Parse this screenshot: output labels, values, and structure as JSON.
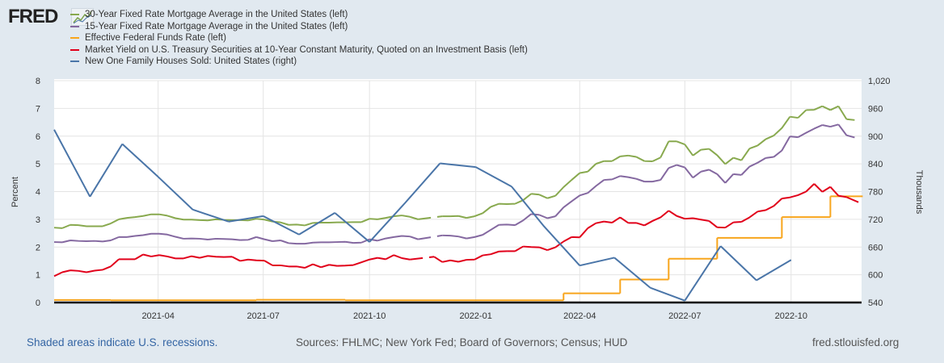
{
  "header": {
    "logo_text": "FRED"
  },
  "chart_data": {
    "type": "line",
    "legend": [
      {
        "label": "30-Year Fixed Rate Mortgage Average in the United States (left)",
        "color": "#88a94e"
      },
      {
        "label": "15-Year Fixed Rate Mortgage Average in the United States (left)",
        "color": "#8468a0"
      },
      {
        "label": "Effective Federal Funds Rate (left)",
        "color": "#f8a51c"
      },
      {
        "label": "Market Yield on U.S. Treasury Securities at 10-Year Constant Maturity, Quoted on an Investment Basis (left)",
        "color": "#e1001a"
      },
      {
        "label": "New One Family Houses Sold: United States (right)",
        "color": "#4a75a8"
      }
    ],
    "x_range": [
      "2021-01-01",
      "2022-12-01"
    ],
    "x_ticks": [
      {
        "date": "2021-04-01",
        "label": "2021-04"
      },
      {
        "date": "2021-07-01",
        "label": "2021-07"
      },
      {
        "date": "2021-10-01",
        "label": "2021-10"
      },
      {
        "date": "2022-01-01",
        "label": "2022-01"
      },
      {
        "date": "2022-04-01",
        "label": "2022-04"
      },
      {
        "date": "2022-07-01",
        "label": "2022-07"
      },
      {
        "date": "2022-10-01",
        "label": "2022-10"
      }
    ],
    "y_left": {
      "label": "Percent",
      "range": [
        0,
        8
      ],
      "ticks": [
        "0",
        "1",
        "2",
        "3",
        "4",
        "5",
        "6",
        "7",
        "8"
      ]
    },
    "y_right": {
      "label": "Thousands",
      "range": [
        540,
        1020
      ],
      "ticks": [
        "540",
        "600",
        "660",
        "720",
        "780",
        "840",
        "900",
        "960",
        "1,020"
      ]
    },
    "grid": true,
    "series": [
      {
        "name": "30-Year Fixed Rate Mortgage",
        "axis": "left",
        "color": "#88a94e",
        "start": "2021-01-01",
        "step_days": 7,
        "values": [
          2.7,
          2.68,
          2.8,
          2.79,
          2.75,
          2.75,
          2.75,
          2.85,
          3.0,
          3.05,
          3.08,
          3.12,
          3.18,
          3.18,
          3.13,
          3.04,
          2.99,
          2.99,
          2.97,
          2.96,
          3.0,
          2.98,
          2.97,
          2.97,
          2.96,
          3.02,
          2.99,
          2.92,
          2.89,
          2.8,
          2.81,
          2.78,
          2.87,
          2.88,
          2.88,
          2.89,
          2.89,
          2.9,
          2.9,
          3.02,
          3.0,
          3.05,
          3.11,
          3.14,
          3.09,
          3.0,
          null,
          null,
          3.11,
          3.11,
          3.12,
          3.05,
          3.11,
          3.22,
          3.45,
          3.56,
          3.55,
          3.56,
          3.69,
          3.92,
          3.89,
          3.76,
          3.85,
          4.16,
          4.42,
          4.67,
          4.72,
          5.0,
          5.1,
          5.1,
          5.27,
          5.3,
          5.25,
          5.1,
          5.09,
          5.23,
          5.81,
          5.81,
          5.7,
          5.3,
          5.51,
          5.54,
          5.31,
          4.99,
          5.22,
          5.13,
          5.55,
          5.66,
          5.89,
          6.02,
          6.29,
          6.7,
          6.66,
          6.94,
          6.95,
          7.08,
          6.94,
          7.08,
          6.61,
          6.58
        ]
      },
      {
        "name": "15-Year Fixed Rate Mortgage",
        "axis": "left",
        "color": "#8468a0",
        "start": "2021-01-01",
        "step_days": 7,
        "values": [
          2.18,
          2.17,
          2.24,
          2.22,
          2.21,
          2.22,
          2.2,
          2.24,
          2.36,
          2.36,
          2.4,
          2.43,
          2.48,
          2.48,
          2.45,
          2.37,
          2.3,
          2.31,
          2.3,
          2.27,
          2.3,
          2.29,
          2.28,
          2.25,
          2.26,
          2.36,
          2.28,
          2.21,
          2.24,
          2.14,
          2.12,
          2.12,
          2.16,
          2.17,
          2.17,
          2.18,
          2.19,
          2.15,
          2.16,
          2.28,
          2.23,
          2.31,
          2.36,
          2.4,
          2.38,
          2.28,
          null,
          null,
          2.42,
          2.41,
          2.38,
          2.31,
          2.36,
          2.44,
          2.62,
          2.8,
          2.81,
          2.79,
          2.96,
          3.19,
          3.16,
          3.04,
          3.11,
          3.43,
          3.65,
          3.86,
          3.95,
          4.2,
          4.42,
          4.44,
          4.56,
          4.52,
          4.46,
          4.36,
          4.36,
          4.42,
          4.85,
          4.96,
          4.87,
          4.5,
          4.72,
          4.79,
          4.63,
          4.31,
          4.63,
          4.6,
          4.9,
          5.04,
          5.21,
          5.25,
          5.48,
          5.99,
          5.96,
          6.12,
          6.27,
          6.4,
          6.34,
          6.42,
          6.03,
          5.95
        ]
      },
      {
        "name": "Effective Federal Funds Rate",
        "axis": "left",
        "color": "#f8a51c",
        "style": "step",
        "start": "2021-01-01",
        "step_days": 7,
        "values": [
          0.09,
          0.09,
          0.09,
          0.09,
          0.09,
          0.09,
          0.09,
          0.08,
          0.08,
          0.08,
          0.08,
          0.08,
          0.08,
          0.08,
          0.08,
          0.08,
          0.08,
          0.08,
          0.08,
          0.08,
          0.08,
          0.08,
          0.08,
          0.08,
          0.08,
          0.1,
          0.1,
          0.1,
          0.1,
          0.1,
          0.1,
          0.1,
          0.1,
          0.1,
          0.1,
          0.1,
          0.08,
          0.08,
          0.08,
          0.08,
          0.08,
          0.08,
          0.08,
          0.08,
          0.08,
          0.08,
          0.08,
          0.08,
          0.08,
          0.08,
          0.08,
          0.08,
          0.08,
          0.08,
          0.08,
          0.08,
          0.08,
          0.08,
          0.08,
          0.08,
          0.08,
          0.08,
          0.08,
          0.33,
          0.33,
          0.33,
          0.33,
          0.33,
          0.33,
          0.33,
          0.83,
          0.83,
          0.83,
          0.83,
          0.83,
          0.83,
          1.58,
          1.58,
          1.58,
          1.58,
          1.58,
          1.58,
          2.33,
          2.33,
          2.33,
          2.33,
          2.33,
          2.33,
          2.33,
          2.33,
          3.08,
          3.08,
          3.08,
          3.08,
          3.08,
          3.08,
          3.83,
          3.83,
          3.83,
          3.83,
          3.83
        ]
      },
      {
        "name": "10-Year Treasury Yield",
        "axis": "left",
        "color": "#e1001a",
        "start": "2021-01-01",
        "step_days": 7,
        "values": [
          0.95,
          1.09,
          1.16,
          1.14,
          1.09,
          1.15,
          1.18,
          1.3,
          1.56,
          1.56,
          1.56,
          1.73,
          1.66,
          1.71,
          1.66,
          1.59,
          1.59,
          1.67,
          1.61,
          1.68,
          1.65,
          1.64,
          1.65,
          1.5,
          1.55,
          1.52,
          1.51,
          1.34,
          1.34,
          1.3,
          1.3,
          1.25,
          1.38,
          1.27,
          1.36,
          1.32,
          1.33,
          1.35,
          1.45,
          1.55,
          1.61,
          1.56,
          1.71,
          1.6,
          1.55,
          null,
          null,
          1.65,
          1.46,
          1.52,
          1.47,
          1.54,
          1.55,
          1.7,
          1.74,
          1.84,
          1.85,
          1.85,
          2.02,
          2.0,
          1.99,
          1.89,
          1.99,
          2.2,
          2.36,
          2.35,
          2.68,
          2.86,
          2.92,
          2.88,
          3.07,
          2.87,
          2.87,
          2.78,
          2.94,
          3.07,
          3.31,
          3.12,
          3.02,
          3.04,
          2.99,
          2.94,
          2.71,
          2.7,
          2.89,
          2.91,
          3.07,
          3.28,
          3.33,
          3.48,
          3.75,
          3.79,
          3.87,
          4.0,
          4.28,
          3.99,
          4.17,
          3.85,
          3.8,
          null,
          3.55
        ]
      },
      {
        "name": "New One Family Houses Sold",
        "axis": "right",
        "color": "#4a75a8",
        "start": "2021-01-01",
        "step_months": 1,
        "values": [
          914,
          769,
          883,
          812,
          741,
          715,
          727,
          687,
          734,
          671,
          756,
          841,
          833,
          791,
          705,
          620,
          637,
          572,
          544,
          662,
          588,
          632
        ]
      }
    ]
  },
  "footer": {
    "recessions_note": "Shaded areas indicate U.S. recessions.",
    "sources": "Sources: FHLMC; New York Fed; Board of Governors; Census; HUD",
    "site": "fred.stlouisfed.org"
  }
}
